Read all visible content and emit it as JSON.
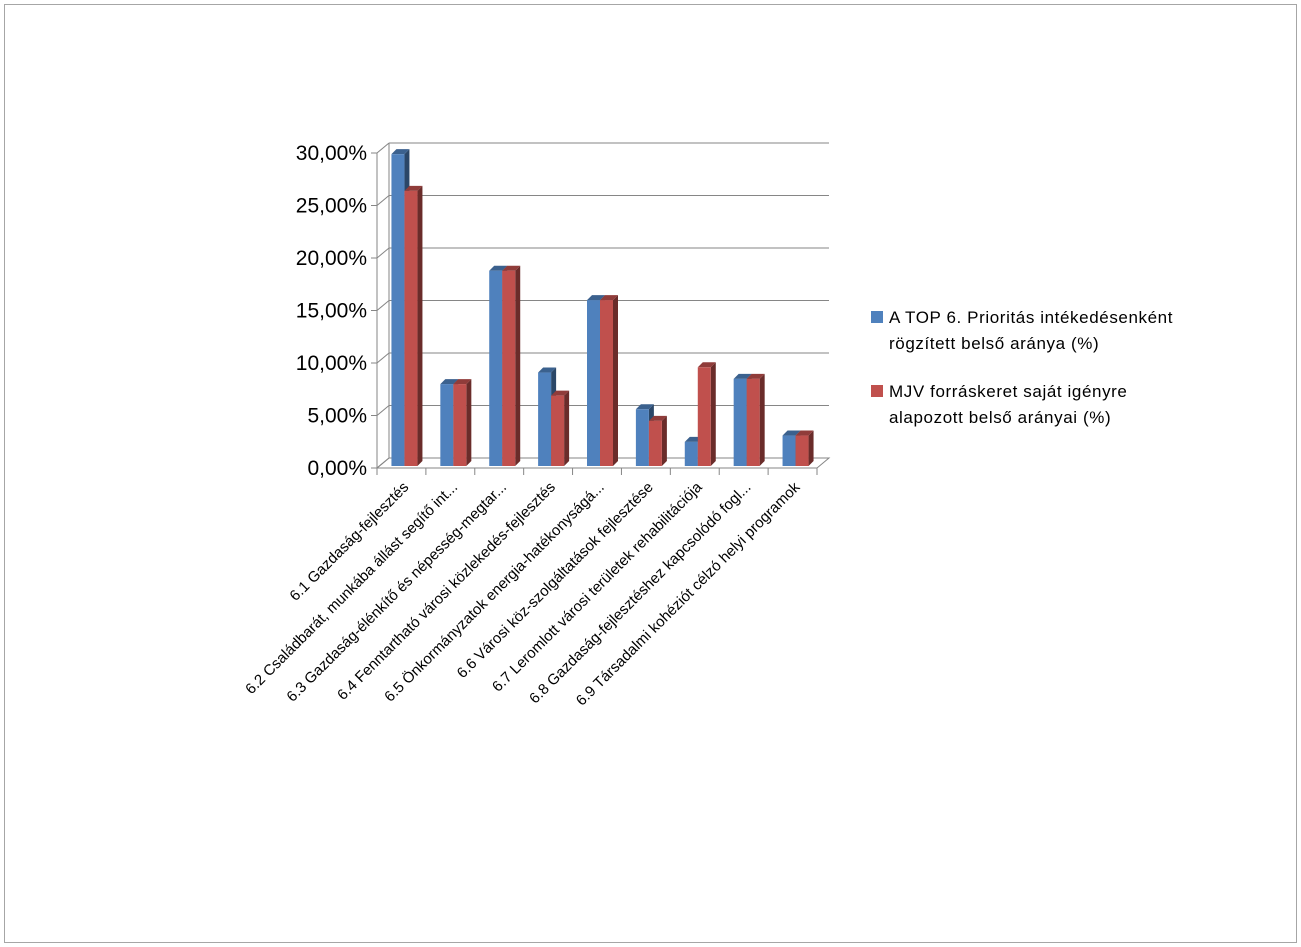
{
  "chart_data": {
    "type": "bar",
    "style": "3d-clustered-column",
    "categories": [
      "6.1 Gazdaság-fejlesztés",
      "6.2 Családbarát, munkába állást segítő int...",
      "6.3 Gazdaság-élénkítő és népesség-megtar...",
      "6.4 Fenntartható városi közlekedés-fejlesztés",
      "6.5 Önkormányzatok energia-hatékonyságá...",
      "6.6 Városi köz-szolgáltatások fejlesztése",
      "6.7 Leromlott városi területek rehabilitációja",
      "6.8 Gazdaság-fejlesztéshez kapcsolódó fogl...",
      "6.9 Társadalmi kohéziót célzó helyi programok"
    ],
    "series": [
      {
        "name": "A TOP 6. Prioritás intékedésenként rögzített belső aránya (%)",
        "color": "#4f81bd",
        "values": [
          29.7,
          7.8,
          18.6,
          8.9,
          15.8,
          5.4,
          2.3,
          8.3,
          2.9
        ]
      },
      {
        "name": "MJV forráskeret saját igényre alapozott belső arányai (%)",
        "color": "#c0504d",
        "values": [
          26.2,
          7.8,
          18.6,
          6.7,
          15.8,
          4.3,
          9.4,
          8.3,
          2.9
        ]
      }
    ],
    "yticks": [
      "0,00%",
      "5,00%",
      "10,00%",
      "15,00%",
      "20,00%",
      "25,00%",
      "30,00%"
    ],
    "ylim": [
      0,
      30
    ],
    "grid": true,
    "legend_position": "right",
    "title": "",
    "xlabel": "",
    "ylabel": ""
  },
  "legend": {
    "items": [
      {
        "line1": "A TOP 6. Prioritás intékedésenként",
        "line2": "rögzített belső aránya (%)",
        "color": "#4f81bd"
      },
      {
        "line1": "MJV forráskeret  saját igényre",
        "line2": "alapozott belső arányai (%)",
        "color": "#c0504d"
      }
    ]
  }
}
